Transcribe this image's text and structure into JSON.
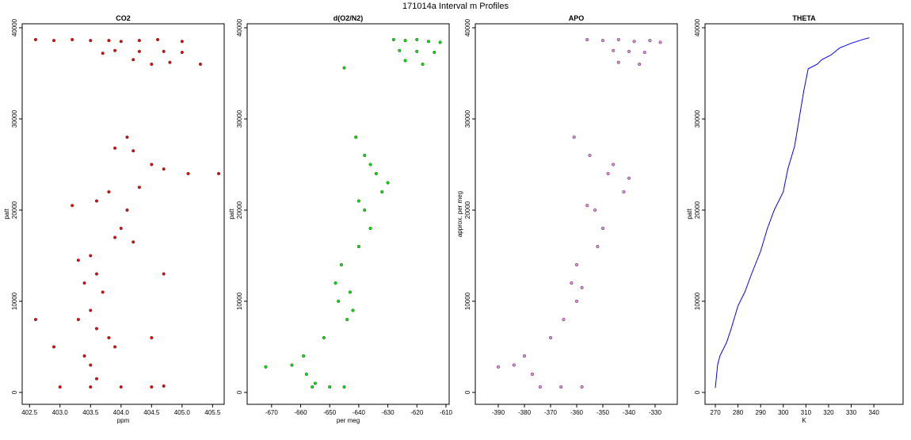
{
  "title": "171014a   Interval m Profiles",
  "chart_data": [
    {
      "type": "scatter",
      "title": "CO2",
      "xlabel": "ppm",
      "ylabel": "patt",
      "color": "#ff0000",
      "xlim": [
        402.38,
        405.69
      ],
      "ylim": [
        -1304,
        40435
      ],
      "xticks": [
        402.5,
        {
          "value": 403,
          "label": "403.0"
        },
        403.5,
        {
          "value": 404,
          "label": "404.0"
        },
        404.5,
        {
          "value": 405,
          "label": "405.0"
        },
        405.5
      ],
      "yticks": [
        0,
        10000,
        20000,
        30000,
        40000
      ],
      "x": [
        402.6,
        402.9,
        403.2,
        403.5,
        403.8,
        404.0,
        404.3,
        404.6,
        405.0,
        403.9,
        404.3,
        404.7,
        405.0,
        404.2,
        404.5,
        404.8,
        405.3,
        403.7,
        404.1,
        403.9,
        404.2,
        404.5,
        404.7,
        405.1,
        405.6,
        404.3,
        403.8,
        403.6,
        404.1,
        403.2,
        404.0,
        404.2,
        403.9,
        403.5,
        403.3,
        403.6,
        403.4,
        403.7,
        403.5,
        403.3,
        403.6,
        403.8,
        403.9,
        403.4,
        403.5,
        403.6,
        402.9,
        402.6,
        404.7,
        404.5,
        403.0,
        403.5,
        404.0,
        404.5,
        404.7
      ],
      "values": [
        38700,
        38600,
        38700,
        38600,
        38600,
        38500,
        38600,
        38700,
        38500,
        37500,
        37400,
        37400,
        37300,
        36500,
        36000,
        36200,
        36000,
        37200,
        28000,
        26800,
        26500,
        25000,
        24500,
        24000,
        24000,
        22500,
        22000,
        21000,
        20000,
        20500,
        18000,
        16500,
        17000,
        15000,
        14500,
        13000,
        12000,
        11000,
        9000,
        8000,
        7000,
        6000,
        5000,
        4000,
        3000,
        1500,
        5000,
        8000,
        13000,
        6000,
        600,
        600,
        600,
        600,
        700
      ]
    },
    {
      "type": "scatter",
      "title": "d(O2/N2)",
      "xlabel": "per meg",
      "ylabel": "patt",
      "color": "#00ee00",
      "xlim": [
        -678.4,
        -608.9
      ],
      "ylim": [
        -1304,
        40435
      ],
      "xticks": [
        -670,
        -660,
        -650,
        -640,
        -630,
        -620,
        -610
      ],
      "yticks": [
        0,
        10000,
        20000,
        30000,
        40000
      ],
      "x": [
        -628,
        -624,
        -620,
        -616,
        -612,
        -626,
        -620,
        -614,
        -624,
        -618,
        -645,
        -641,
        -638,
        -634,
        -632,
        -638,
        -636,
        -640,
        -646,
        -648,
        -647,
        -644,
        -652,
        -659,
        -663,
        -658,
        -655,
        -656,
        -650,
        -645,
        -672,
        -636,
        -640,
        -643,
        -630,
        -642
      ],
      "values": [
        38700,
        38600,
        38700,
        38500,
        38400,
        37500,
        37400,
        37300,
        36400,
        36000,
        35600,
        28000,
        26000,
        24000,
        22000,
        20000,
        18000,
        16000,
        14000,
        12000,
        10000,
        8000,
        6000,
        4000,
        3000,
        2000,
        1000,
        600,
        600,
        600,
        2800,
        25000,
        21000,
        11000,
        23000,
        9000
      ]
    },
    {
      "type": "scatter",
      "title": "APO",
      "ylabel": "approx. per meg",
      "color": "#ee82ee",
      "xlim": [
        -398.8,
        -321.5
      ],
      "ylim": [
        -1304,
        40435
      ],
      "xticks": [
        -390,
        -380,
        -370,
        -360,
        -350,
        -340,
        -330
      ],
      "yticks": [
        0,
        10000,
        20000,
        30000,
        40000
      ],
      "x": [
        -356,
        -350,
        -344,
        -338,
        -332,
        -328,
        -346,
        -340,
        -334,
        -344,
        -336,
        -361,
        -355,
        -348,
        -342,
        -353,
        -350,
        -352,
        -360,
        -362,
        -360,
        -365,
        -370,
        -380,
        -384,
        -377,
        -374,
        -366,
        -358,
        -390,
        -346,
        -356,
        -340,
        -358
      ],
      "values": [
        38700,
        38600,
        38700,
        38500,
        38600,
        38400,
        37500,
        37400,
        37300,
        36200,
        36000,
        28000,
        26000,
        24000,
        22000,
        20000,
        18000,
        16000,
        14000,
        12000,
        10000,
        8000,
        6000,
        4000,
        3000,
        2000,
        600,
        600,
        600,
        2800,
        25000,
        20500,
        23500,
        11500
      ]
    },
    {
      "type": "line",
      "title": "THETA",
      "xlabel": "K",
      "ylabel": "patt",
      "color": "#0000ff",
      "xlim": [
        265.45,
        352.9
      ],
      "ylim": [
        -1304,
        40435
      ],
      "xticks": [
        270,
        280,
        290,
        300,
        310,
        320,
        330,
        340
      ],
      "yticks": [
        0,
        10000,
        20000,
        30000,
        40000
      ],
      "x": [
        270,
        271,
        272,
        275,
        277,
        280,
        283,
        286,
        290,
        293,
        296,
        300,
        302,
        305,
        307,
        309,
        311,
        315,
        317,
        321,
        325,
        330,
        335,
        338
      ],
      "values": [
        500,
        3000,
        4000,
        5500,
        7000,
        9500,
        11000,
        13000,
        15500,
        18000,
        20000,
        22000,
        24500,
        27000,
        30000,
        33000,
        35500,
        36000,
        36500,
        37000,
        37800,
        38300,
        38700,
        38900
      ]
    }
  ]
}
